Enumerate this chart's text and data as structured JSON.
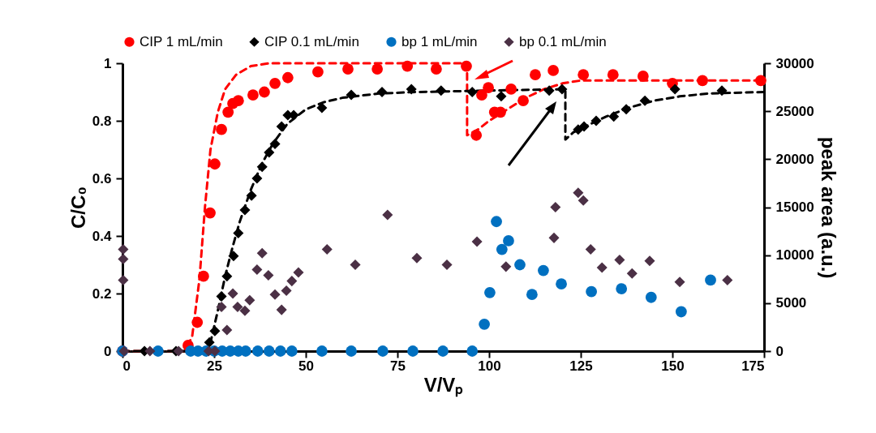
{
  "chart_data": {
    "type": "scatter",
    "xlabel": "V/Vₚ",
    "ylabel": "C/C₀",
    "y2label": "peak area (a.u.)",
    "xlim": [
      0,
      175
    ],
    "xticks": [
      0,
      25,
      50,
      75,
      100,
      125,
      150,
      175
    ],
    "ylim": [
      0,
      1
    ],
    "yticks": [
      0,
      0.2,
      0.4,
      0.6,
      0.8,
      1
    ],
    "y2lim": [
      0,
      30000
    ],
    "y2ticks": [
      0,
      5000,
      10000,
      15000,
      20000,
      25000,
      30000
    ],
    "legend": "top",
    "grid": false,
    "series": [
      {
        "type": "line",
        "color": "#ff0000",
        "line_style": "dashed",
        "marker": "none",
        "x": [
          0,
          17,
          19,
          21,
          22.5,
          24,
          26,
          28,
          31,
          35,
          40,
          50,
          94,
          94,
          97,
          100,
          105,
          110,
          115,
          120,
          125,
          135,
          150,
          175
        ],
        "values": [
          0,
          0,
          0.05,
          0.25,
          0.5,
          0.7,
          0.83,
          0.91,
          0.96,
          0.99,
          1,
          1,
          1,
          0.75,
          0.77,
          0.8,
          0.84,
          0.88,
          0.91,
          0.93,
          0.94,
          0.94,
          0.94,
          0.94
        ]
      },
      {
        "type": "line",
        "color": "#000000",
        "line_style": "dashed",
        "marker": "none",
        "x": [
          0,
          22,
          24,
          26,
          28,
          30,
          32,
          35,
          38,
          41,
          45,
          50,
          55,
          60,
          70,
          80,
          100,
          120.8,
          120.8,
          123,
          127,
          132,
          138,
          145,
          152,
          160,
          175
        ],
        "values": [
          0,
          0,
          0.03,
          0.14,
          0.26,
          0.36,
          0.45,
          0.56,
          0.65,
          0.72,
          0.79,
          0.84,
          0.865,
          0.88,
          0.895,
          0.9,
          0.905,
          0.91,
          0.735,
          0.76,
          0.785,
          0.815,
          0.845,
          0.87,
          0.885,
          0.895,
          0.9
        ]
      },
      {
        "name": "CIP 1 mL/min",
        "color": "#ff0000",
        "marker": "circle",
        "x": [
          0,
          17.9,
          20.4,
          22.1,
          23.9,
          25.2,
          27,
          28.8,
          30.1,
          31.6,
          35.6,
          38.7,
          41.6,
          45.1,
          53.3,
          61.5,
          69.5,
          77.7,
          85.6,
          93.8,
          96.5,
          98,
          99.8,
          101.5,
          103.1,
          106,
          109.3,
          112.6,
          117.5,
          125.7,
          133.8,
          142,
          150,
          158.2,
          174.1
        ],
        "values": [
          0,
          0.02,
          0.1,
          0.26,
          0.48,
          0.65,
          0.77,
          0.83,
          0.86,
          0.87,
          0.89,
          0.9,
          0.93,
          0.95,
          0.97,
          0.98,
          0.98,
          0.99,
          0.98,
          0.99,
          0.75,
          0.89,
          0.915,
          0.83,
          0.83,
          0.91,
          0.87,
          0.96,
          0.975,
          0.96,
          0.96,
          0.955,
          0.93,
          0.94,
          0.94
        ]
      },
      {
        "name": "CIP 0.1 mL/min",
        "color": "#000000",
        "marker": "diamond",
        "x": [
          6,
          14.6,
          23.7,
          25.2,
          27,
          28.5,
          30.3,
          31.6,
          33.4,
          35.2,
          36.7,
          38.1,
          40,
          41.6,
          43.4,
          45.1,
          46.7,
          54.4,
          62.4,
          70.8,
          78.8,
          86.9,
          95.4,
          103.3,
          116.4,
          119.9,
          124.3,
          125.9,
          129.2,
          134,
          137.4,
          142.5,
          150.7,
          163.5
        ],
        "values": [
          0,
          0,
          0.03,
          0.07,
          0.19,
          0.26,
          0.33,
          0.41,
          0.49,
          0.54,
          0.6,
          0.64,
          0.69,
          0.72,
          0.78,
          0.82,
          0.82,
          0.845,
          0.89,
          0.9,
          0.91,
          0.905,
          0.9,
          0.885,
          0.905,
          0.91,
          0.77,
          0.78,
          0.8,
          0.815,
          0.84,
          0.87,
          0.91,
          0.905
        ]
      },
      {
        "name": "bp 1 mL/min",
        "color": "#0070c0",
        "marker": "circle",
        "axis": "y2",
        "x": [
          0,
          9.7,
          18.6,
          20.6,
          22.8,
          25,
          27.2,
          29.4,
          31.6,
          33.6,
          36.9,
          40,
          43.1,
          46.2,
          54.4,
          62.4,
          71,
          79.2,
          87.4,
          95.4,
          98.7,
          100.2,
          102,
          103.5,
          105.3,
          108.4,
          111.7,
          114.8,
          119.7,
          127.9,
          136.1,
          144.2,
          152.4,
          160.4
        ],
        "values": [
          0,
          0,
          0,
          0,
          0,
          0,
          0,
          0,
          0,
          0,
          0,
          0,
          0,
          0,
          0,
          0,
          0,
          0,
          0,
          0,
          2800,
          6100,
          13500,
          10600,
          11500,
          9000,
          5900,
          8400,
          7000,
          6200,
          6500,
          5600,
          4100,
          7400
        ]
      },
      {
        "name": "bp 0.1 mL/min",
        "color": "#4b3045",
        "marker": "diamond",
        "axis": "y2",
        "x": [
          0.2,
          0.2,
          0.2,
          0.4,
          7.5,
          15.3,
          23.5,
          25.2,
          27,
          28.5,
          30.1,
          31.4,
          33.4,
          34.7,
          36.7,
          38.1,
          39.8,
          41.6,
          43.4,
          44.7,
          46.2,
          48,
          55.8,
          63.5,
          72.3,
          80.3,
          88.5,
          96.7,
          104.6,
          117.7,
          118.1,
          124.3,
          125.7,
          127.7,
          130.8,
          135.6,
          139,
          143.8,
          152,
          165
        ],
        "values": [
          10600,
          9600,
          7400,
          0,
          0,
          0,
          0,
          0,
          4600,
          2200,
          6000,
          4600,
          4200,
          5300,
          8500,
          10200,
          7900,
          5900,
          4300,
          6300,
          7300,
          8200,
          10600,
          9000,
          14200,
          9700,
          9000,
          11400,
          8800,
          11800,
          15000,
          16500,
          15700,
          10600,
          8700,
          9500,
          8100,
          9400,
          7200,
          7400
        ]
      }
    ]
  }
}
